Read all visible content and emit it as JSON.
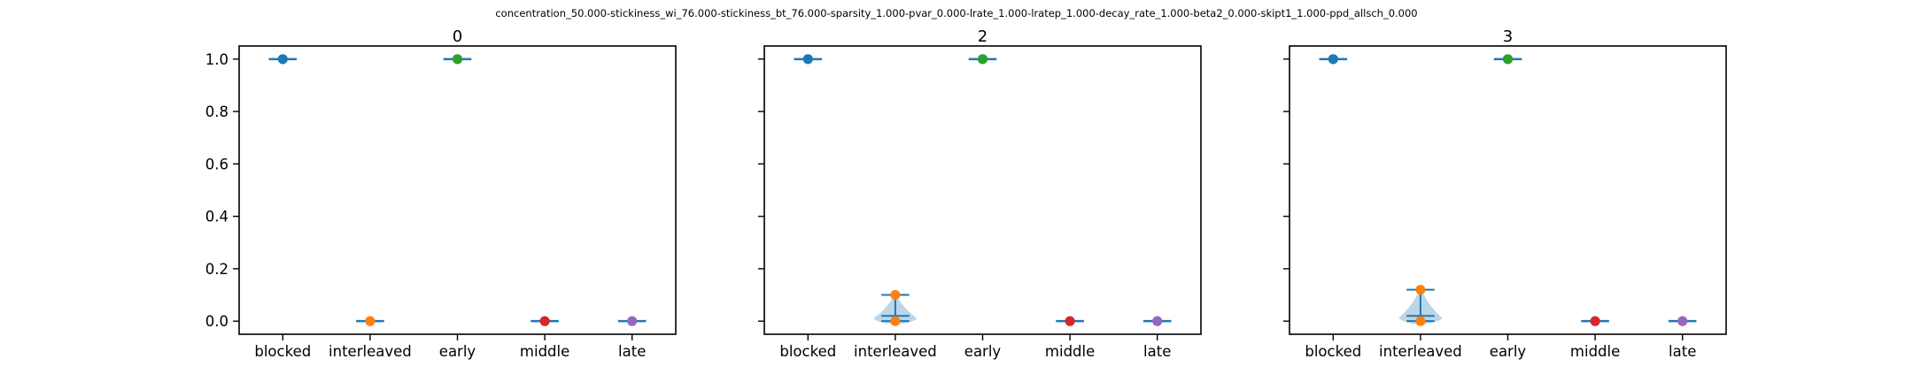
{
  "figure": {
    "suptitle": "concentration_50.000-stickiness_wi_76.000-stickiness_bt_76.000-sparsity_1.000-pvar_0.000-lrate_1.000-lratep_1.000-decay_rate_1.000-beta2_0.000-skipt1_1.000-ppd_allsch_0.000"
  },
  "chart_data": [
    {
      "type": "violin",
      "title": "0",
      "categories": [
        "blocked",
        "interleaved",
        "early",
        "middle",
        "late"
      ],
      "ylim": [
        -0.05,
        1.05
      ],
      "yticks": [
        "0.0",
        "0.2",
        "0.4",
        "0.6",
        "0.8",
        "1.0"
      ],
      "series": [
        {
          "category": "blocked",
          "color": "#1f77b4",
          "points": [
            1.0,
            1.0
          ],
          "min": 1.0,
          "max": 1.0,
          "mean": 1.0
        },
        {
          "category": "interleaved",
          "color": "#ff7f0e",
          "points": [
            0.0,
            0.0
          ],
          "min": 0.0,
          "max": 0.0,
          "mean": 0.0
        },
        {
          "category": "early",
          "color": "#2ca02c",
          "points": [
            1.0,
            1.0
          ],
          "min": 1.0,
          "max": 1.0,
          "mean": 1.0
        },
        {
          "category": "middle",
          "color": "#d62728",
          "points": [
            0.0,
            0.0
          ],
          "min": 0.0,
          "max": 0.0,
          "mean": 0.0
        },
        {
          "category": "late",
          "color": "#9467bd",
          "points": [
            0.0,
            0.0
          ],
          "min": 0.0,
          "max": 0.0,
          "mean": 0.0
        }
      ]
    },
    {
      "type": "violin",
      "title": "2",
      "categories": [
        "blocked",
        "interleaved",
        "early",
        "middle",
        "late"
      ],
      "ylim": [
        -0.05,
        1.05
      ],
      "yticks": [
        "0.0",
        "0.2",
        "0.4",
        "0.6",
        "0.8",
        "1.0"
      ],
      "series": [
        {
          "category": "blocked",
          "color": "#1f77b4",
          "points": [
            1.0,
            1.0
          ],
          "min": 1.0,
          "max": 1.0,
          "mean": 1.0
        },
        {
          "category": "interleaved",
          "color": "#ff7f0e",
          "points": [
            0.0,
            0.1
          ],
          "min": 0.0,
          "max": 0.1,
          "mean": 0.02
        },
        {
          "category": "early",
          "color": "#2ca02c",
          "points": [
            1.0,
            1.0
          ],
          "min": 1.0,
          "max": 1.0,
          "mean": 1.0
        },
        {
          "category": "middle",
          "color": "#d62728",
          "points": [
            0.0,
            0.0
          ],
          "min": 0.0,
          "max": 0.0,
          "mean": 0.0
        },
        {
          "category": "late",
          "color": "#9467bd",
          "points": [
            0.0,
            0.0
          ],
          "min": 0.0,
          "max": 0.0,
          "mean": 0.0
        }
      ]
    },
    {
      "type": "violin",
      "title": "3",
      "categories": [
        "blocked",
        "interleaved",
        "early",
        "middle",
        "late"
      ],
      "ylim": [
        -0.05,
        1.05
      ],
      "yticks": [
        "0.0",
        "0.2",
        "0.4",
        "0.6",
        "0.8",
        "1.0"
      ],
      "series": [
        {
          "category": "blocked",
          "color": "#1f77b4",
          "points": [
            1.0,
            1.0
          ],
          "min": 1.0,
          "max": 1.0,
          "mean": 1.0
        },
        {
          "category": "interleaved",
          "color": "#ff7f0e",
          "points": [
            0.0,
            0.12
          ],
          "min": 0.0,
          "max": 0.12,
          "mean": 0.02
        },
        {
          "category": "early",
          "color": "#2ca02c",
          "points": [
            1.0,
            1.0
          ],
          "min": 1.0,
          "max": 1.0,
          "mean": 1.0
        },
        {
          "category": "middle",
          "color": "#d62728",
          "points": [
            0.0,
            0.0
          ],
          "min": 0.0,
          "max": 0.0,
          "mean": 0.0
        },
        {
          "category": "late",
          "color": "#9467bd",
          "points": [
            0.0,
            0.0
          ],
          "min": 0.0,
          "max": 0.0,
          "mean": 0.0
        }
      ]
    }
  ]
}
